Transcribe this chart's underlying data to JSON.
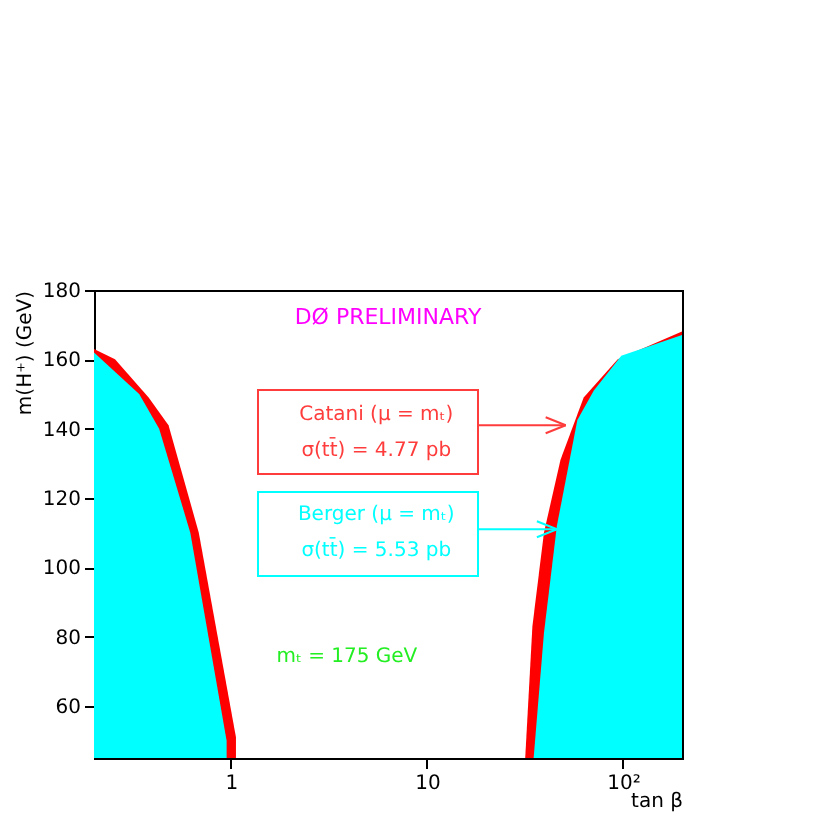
{
  "chart_data": {
    "type": "area",
    "xlabel": "tan β",
    "ylabel": "m(H⁺) (GeV)",
    "log": "x",
    "xlim": [
      0.2,
      200
    ],
    "ylim": [
      45,
      180
    ],
    "xticks": [
      1,
      10,
      {
        "value": 100,
        "label": "10²"
      }
    ],
    "yticks": [
      60,
      80,
      100,
      120,
      140,
      160,
      180
    ],
    "grid": false,
    "series": [
      {
        "color": "#ff0000",
        "x": [
          0.2,
          0.256,
          0.38,
          0.48,
          0.685,
          1.06,
          1.06
        ],
        "values": [
          163,
          160,
          149,
          141,
          110,
          51,
          45
        ]
      },
      {
        "color": "#00ffff",
        "x": [
          0.2,
          0.34,
          0.43,
          0.62,
          0.95,
          0.95
        ],
        "values": [
          162,
          150,
          140,
          110,
          50,
          45
        ]
      },
      {
        "color": "#ff0000",
        "x": [
          31.7,
          34.5,
          39.5,
          48,
          63,
          94,
          200
        ],
        "values": [
          45,
          83,
          110,
          131,
          149,
          160,
          168
        ]
      },
      {
        "color": "#00ffff",
        "x": [
          35,
          39.5,
          46,
          58.5,
          71,
          98,
          200
        ],
        "values": [
          45,
          81,
          112,
          142.5,
          151,
          161,
          167
        ]
      }
    ],
    "annotations": [
      "DØ PRELIMINARY",
      {
        "text": "Catani (μ = mₜ)",
        "x": 51,
        "y": 141
      },
      "σ(tt̄) = 4.77 pb",
      {
        "text": "Berger (μ = mₜ)",
        "x": 46,
        "y": 111
      },
      "σ(tt̄) = 5.53 pb",
      "mₜ = 175 GeV"
    ]
  }
}
